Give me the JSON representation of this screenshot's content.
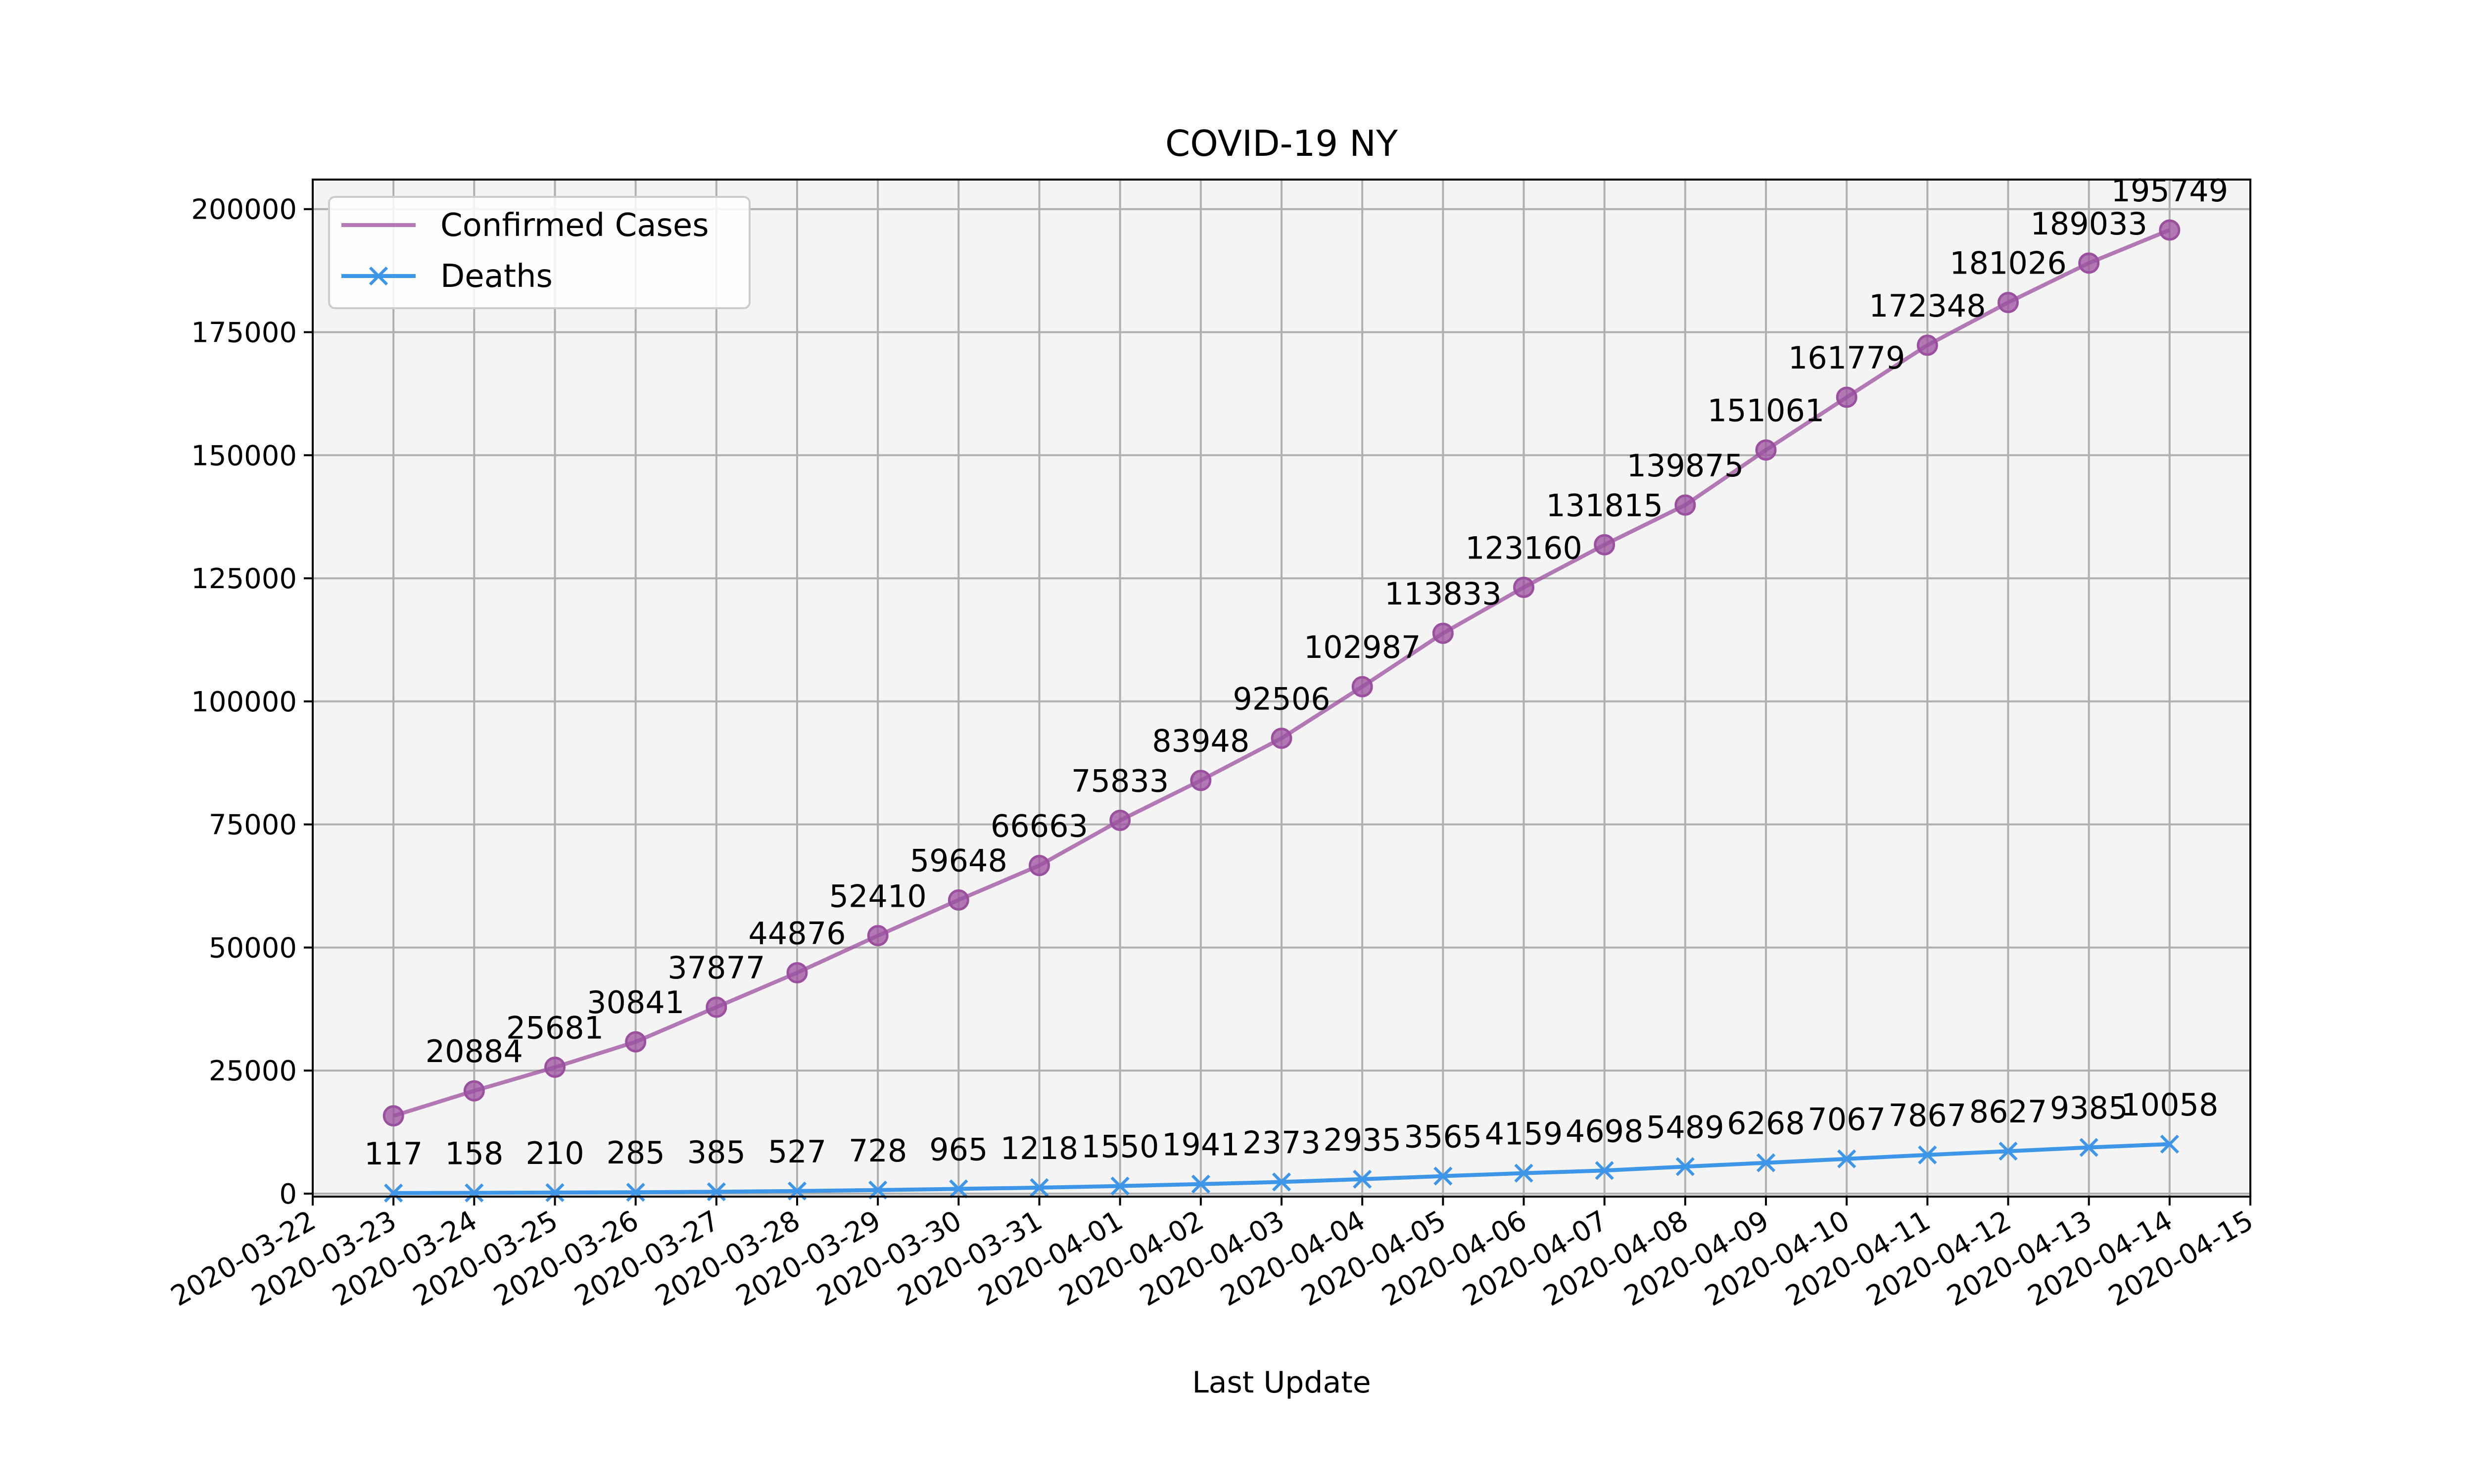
{
  "chart_data": {
    "type": "line",
    "title": "COVID-19 NY",
    "xlabel": "Last Update",
    "ylabel": "",
    "x_ticks": [
      "2020-03-22",
      "2020-03-23",
      "2020-03-24",
      "2020-03-25",
      "2020-03-26",
      "2020-03-27",
      "2020-03-28",
      "2020-03-29",
      "2020-03-30",
      "2020-03-31",
      "2020-04-01",
      "2020-04-02",
      "2020-04-03",
      "2020-04-04",
      "2020-04-05",
      "2020-04-06",
      "2020-04-07",
      "2020-04-08",
      "2020-04-09",
      "2020-04-10",
      "2020-04-11",
      "2020-04-12",
      "2020-04-13",
      "2020-04-14",
      "2020-04-15"
    ],
    "y_ticks": [
      0,
      25000,
      50000,
      75000,
      100000,
      125000,
      150000,
      175000,
      200000
    ],
    "xlim": [
      "2020-03-22",
      "2020-04-15"
    ],
    "ylim": [
      -600,
      206000
    ],
    "grid": true,
    "legend_position": "top-left",
    "background_color": "#f4f4f4",
    "series": [
      {
        "name": "Confirmed Cases",
        "color": "#9b4f9f",
        "marker": "circle",
        "x": [
          "2020-03-23",
          "2020-03-24",
          "2020-03-25",
          "2020-03-26",
          "2020-03-27",
          "2020-03-28",
          "2020-03-29",
          "2020-03-30",
          "2020-03-31",
          "2020-04-01",
          "2020-04-02",
          "2020-04-03",
          "2020-04-04",
          "2020-04-05",
          "2020-04-06",
          "2020-04-07",
          "2020-04-08",
          "2020-04-09",
          "2020-04-10",
          "2020-04-11",
          "2020-04-12",
          "2020-04-13",
          "2020-04-14"
        ],
        "values": [
          15800,
          20884,
          25681,
          30841,
          37877,
          44876,
          52410,
          59648,
          66663,
          75833,
          83948,
          92506,
          102987,
          113833,
          123160,
          131815,
          139875,
          151061,
          161779,
          172348,
          181026,
          189033,
          195749
        ],
        "labels": [
          "",
          "20884",
          "25681",
          "30841",
          "37877",
          "44876",
          "52410",
          "59648",
          "66663",
          "75833",
          "83948",
          "92506",
          "102987",
          "113833",
          "123160",
          "131815",
          "139875",
          "151061",
          "161779",
          "172348",
          "181026",
          "189033",
          "195749"
        ]
      },
      {
        "name": "Deaths",
        "color": "#3d96e8",
        "marker": "x",
        "x": [
          "2020-03-23",
          "2020-03-24",
          "2020-03-25",
          "2020-03-26",
          "2020-03-27",
          "2020-03-28",
          "2020-03-29",
          "2020-03-30",
          "2020-03-31",
          "2020-04-01",
          "2020-04-02",
          "2020-04-03",
          "2020-04-04",
          "2020-04-05",
          "2020-04-06",
          "2020-04-07",
          "2020-04-08",
          "2020-04-09",
          "2020-04-10",
          "2020-04-11",
          "2020-04-12",
          "2020-04-13",
          "2020-04-14"
        ],
        "values": [
          117,
          158,
          210,
          285,
          385,
          527,
          728,
          965,
          1218,
          1550,
          1941,
          2373,
          2935,
          3565,
          4159,
          4698,
          5489,
          6268,
          7067,
          7867,
          8627,
          9385,
          10058
        ],
        "labels": [
          "117",
          "158",
          "210",
          "285",
          "385",
          "527",
          "728",
          "965",
          "1218",
          "1550",
          "1941",
          "2373",
          "2935",
          "3565",
          "4159",
          "4698",
          "5489",
          "6268",
          "7067",
          "7867",
          "8627",
          "9385",
          "10058"
        ]
      }
    ]
  }
}
